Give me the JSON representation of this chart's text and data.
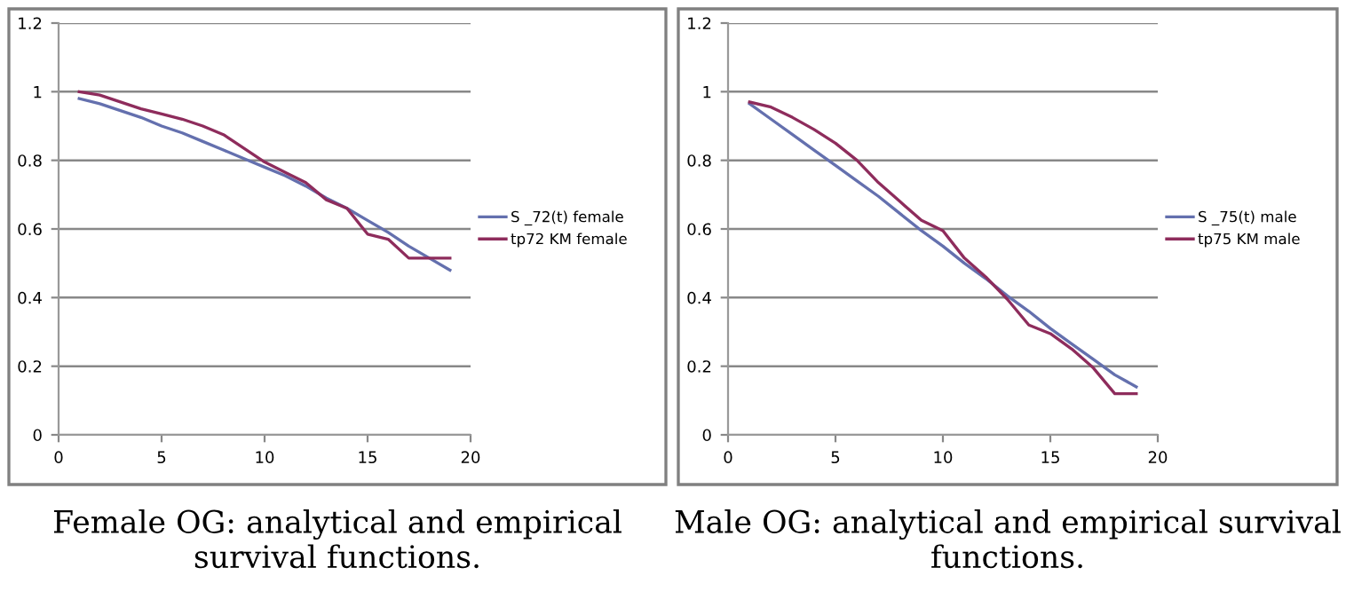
{
  "chart_data": [
    {
      "type": "line",
      "x": [
        1,
        2,
        3,
        4,
        5,
        6,
        7,
        8,
        9,
        10,
        11,
        12,
        13,
        14,
        15,
        16,
        17,
        18,
        19
      ],
      "series": [
        {
          "name": "S _72(t) female",
          "color": "#6470ae",
          "values": [
            0.98,
            0.965,
            0.945,
            0.925,
            0.9,
            0.88,
            0.855,
            0.83,
            0.805,
            0.78,
            0.755,
            0.725,
            0.69,
            0.66,
            0.625,
            0.59,
            0.55,
            0.515,
            0.48
          ]
        },
        {
          "name": "tp72 KM female",
          "color": "#8e2c5c",
          "values": [
            1.0,
            0.99,
            0.97,
            0.95,
            0.935,
            0.92,
            0.9,
            0.875,
            0.835,
            0.795,
            0.765,
            0.735,
            0.685,
            0.66,
            0.585,
            0.57,
            0.515,
            0.515,
            0.515
          ]
        }
      ],
      "xlim": [
        0,
        20
      ],
      "xticks": [
        0,
        5,
        10,
        15,
        20
      ],
      "ylim": [
        0,
        1.2
      ],
      "yticks": [
        0,
        0.2,
        0.4,
        0.6,
        0.8,
        1,
        1.2
      ],
      "grid": "y",
      "legend": "right",
      "marker": "none",
      "line_style": "solid",
      "annotations": [
        "Female OG: analytical and empirical survival functions."
      ]
    },
    {
      "type": "line",
      "x": [
        1,
        2,
        3,
        4,
        5,
        6,
        7,
        8,
        9,
        10,
        11,
        12,
        13,
        14,
        15,
        16,
        17,
        18,
        19
      ],
      "series": [
        {
          "name": "S _75(t) male",
          "color": "#6470ae",
          "values": [
            0.965,
            0.92,
            0.875,
            0.83,
            0.785,
            0.74,
            0.695,
            0.645,
            0.595,
            0.55,
            0.5,
            0.455,
            0.405,
            0.36,
            0.31,
            0.265,
            0.22,
            0.175,
            0.14
          ]
        },
        {
          "name": "tp75 KM male",
          "color": "#8e2c5c",
          "values": [
            0.97,
            0.955,
            0.925,
            0.89,
            0.85,
            0.8,
            0.735,
            0.68,
            0.625,
            0.595,
            0.515,
            0.46,
            0.395,
            0.32,
            0.295,
            0.25,
            0.195,
            0.12,
            0.12
          ]
        }
      ],
      "xlim": [
        0,
        20
      ],
      "xticks": [
        0,
        5,
        10,
        15,
        20
      ],
      "ylim": [
        0,
        1.2
      ],
      "yticks": [
        0,
        0.2,
        0.4,
        0.6,
        0.8,
        1,
        1.2
      ],
      "grid": "y",
      "legend": "right",
      "marker": "none",
      "line_style": "solid",
      "annotations": [
        "Male OG: analytical and empirical survival functions."
      ]
    }
  ]
}
